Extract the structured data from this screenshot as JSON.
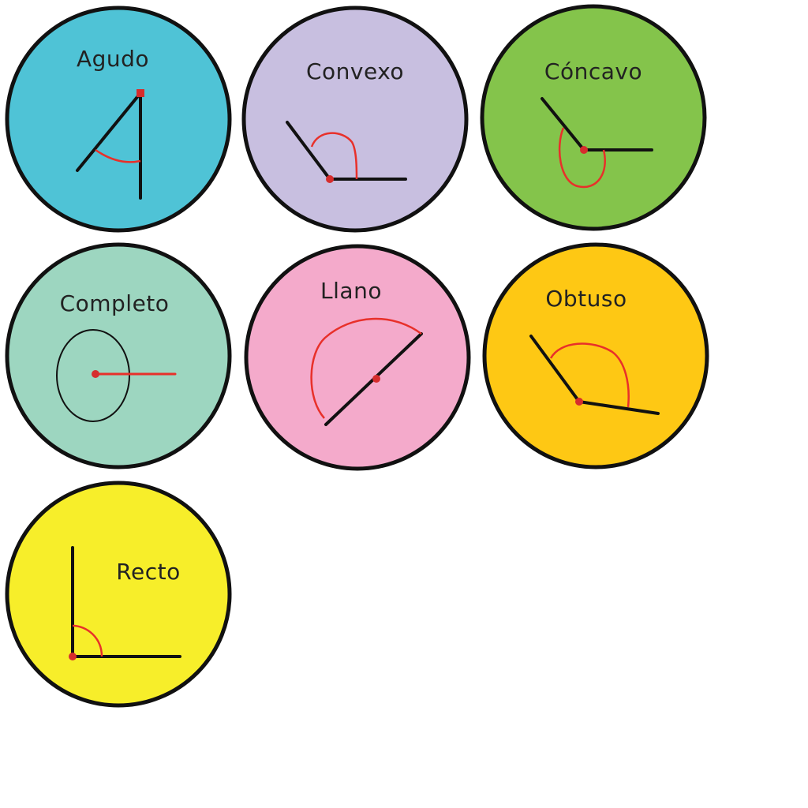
{
  "angle_cards": [
    {
      "label": "Agudo",
      "color": "#4fc3d6"
    },
    {
      "label": "Convexo",
      "color": "#c8bfe0"
    },
    {
      "label": "Cóncavo",
      "color": "#84c44b"
    },
    {
      "label": "Completo",
      "color": "#9dd6c0"
    },
    {
      "label": "Llano",
      "color": "#f4aacb"
    },
    {
      "label": "Obtuso",
      "color": "#fec814"
    },
    {
      "label": "Recto",
      "color": "#f7ee2a"
    }
  ],
  "colors": {
    "outline": "#111111",
    "arc": "#e8302a",
    "vertex": "#d62d2d"
  }
}
